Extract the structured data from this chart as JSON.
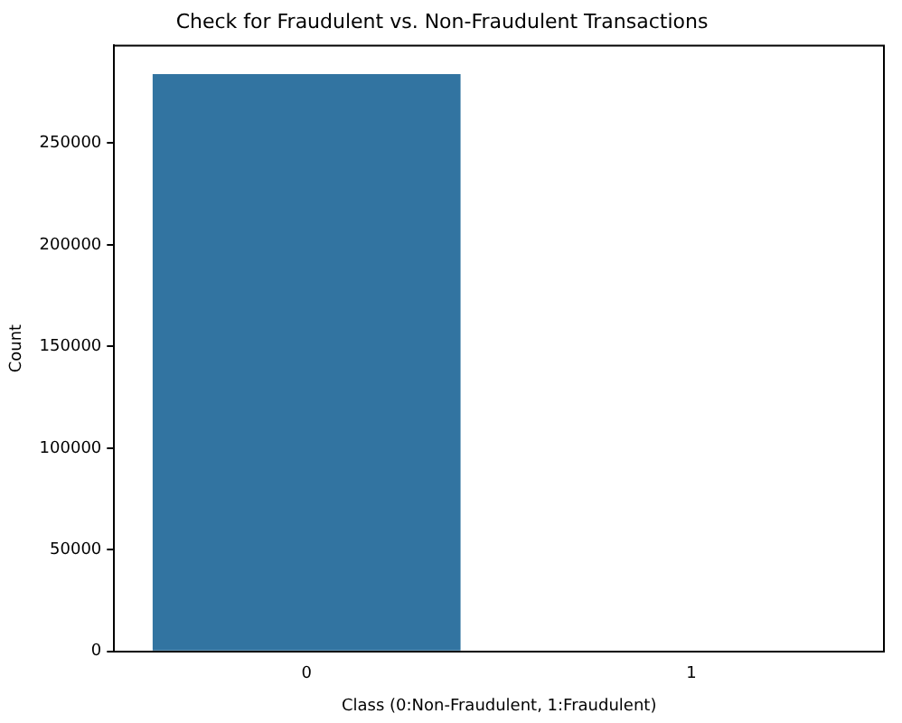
{
  "chart_data": {
    "type": "bar",
    "title": "Check for Fraudulent vs. Non-Fraudulent Transactions",
    "xlabel": "Class (0:Non-Fraudulent, 1:Fraudulent)",
    "ylabel": "Count",
    "categories": [
      "0",
      "1"
    ],
    "values": [
      284000,
      500
    ],
    "color": "#3274a1",
    "ylim": [
      0,
      298000
    ],
    "yticks": [
      0,
      50000,
      100000,
      150000,
      200000,
      250000
    ],
    "grid": false,
    "legend": false
  }
}
